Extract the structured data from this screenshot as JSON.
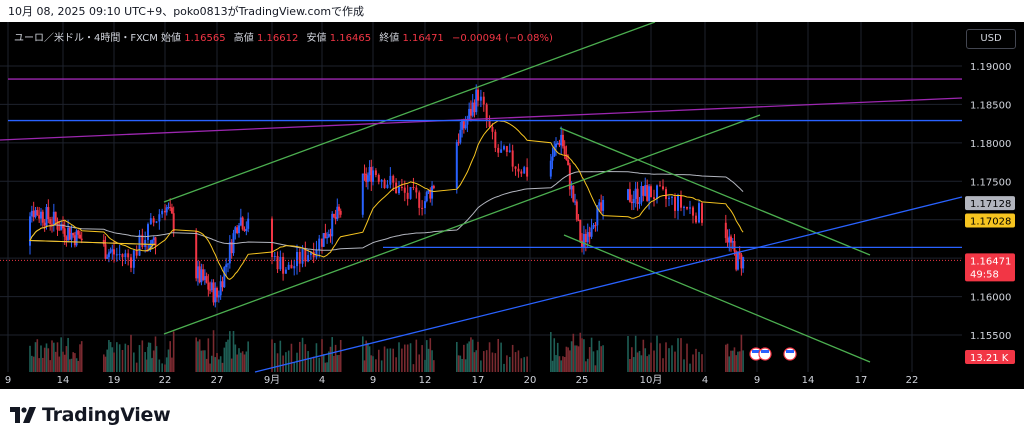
{
  "header": {
    "text": "10月 08, 2025 09:10 UTC+9、poko0813がTradingView.comで作成"
  },
  "legend": {
    "symbol": "ユーロ／米ドル・4時間・FXCM",
    "open_label": "始値",
    "open": "1.16565",
    "high_label": "高値",
    "high": "1.16612",
    "low_label": "安値",
    "low": "1.16465",
    "close_label": "終値",
    "close": "1.16471",
    "change": "−0.00094 (−0.08%)"
  },
  "currency_button": "USD",
  "footer": {
    "brand": "TradingView"
  },
  "colors": {
    "background": "#000000",
    "up": "#2962ff",
    "down": "#f23645",
    "grid": "#1e222d",
    "channel_green": "#4caf50",
    "level_blue": "#2962ff",
    "resistance_purple": "#9c27b0",
    "ma_fast": "#f7c520",
    "ma_slow": "#b2b5be"
  },
  "chart_data": {
    "type": "candlestick",
    "symbol": "EURUSD",
    "timeframe": "4h",
    "y_range": [
      1.1515,
      1.1945
    ],
    "y_ticks": [
      "1.19000",
      "1.18500",
      "1.18000",
      "1.17500",
      "1.17000",
      "1.16500",
      "1.16000",
      "1.15500"
    ],
    "x_ticks": [
      "9",
      "14",
      "19",
      "22",
      "27",
      "9月",
      "4",
      "9",
      "12",
      "17",
      "20",
      "25",
      "10月",
      "4",
      "9",
      "14",
      "17",
      "22"
    ],
    "price_labels": [
      {
        "text": "1.17128",
        "value": 1.17128,
        "color": "#b2b5be"
      },
      {
        "text": "1.17028",
        "value": 1.17028,
        "color": "#f7c520"
      },
      {
        "text": "1.16471",
        "value": 1.16471,
        "color": "#f23645",
        "countdown": "49:58"
      },
      {
        "text": "13.21 K",
        "value": null,
        "color": "#f23645"
      }
    ],
    "key_closes": [
      {
        "date": "Aug 8",
        "close": 1.166
      },
      {
        "date": "Aug 11",
        "close": 1.1715
      },
      {
        "date": "Aug 13",
        "close": 1.17
      },
      {
        "date": "Aug 15",
        "close": 1.168
      },
      {
        "date": "Aug 20",
        "close": 1.165
      },
      {
        "date": "Aug 22",
        "close": 1.172
      },
      {
        "date": "Aug 25",
        "close": 1.163
      },
      {
        "date": "Aug 27",
        "close": 1.16
      },
      {
        "date": "Aug 29",
        "close": 1.1705
      },
      {
        "date": "Sep 2",
        "close": 1.1635
      },
      {
        "date": "Sep 5",
        "close": 1.1695
      },
      {
        "date": "Sep 9",
        "close": 1.1765
      },
      {
        "date": "Sep 11",
        "close": 1.173
      },
      {
        "date": "Sep 12",
        "close": 1.1725
      },
      {
        "date": "Sep 16",
        "close": 1.183
      },
      {
        "date": "Sep 17",
        "close": 1.1865
      },
      {
        "date": "Sep 18",
        "close": 1.179
      },
      {
        "date": "Sep 21",
        "close": 1.1745
      },
      {
        "date": "Sep 23",
        "close": 1.181
      },
      {
        "date": "Sep 25",
        "close": 1.1665
      },
      {
        "date": "Sep 26",
        "close": 1.1705
      },
      {
        "date": "Sep 29",
        "close": 1.173
      },
      {
        "date": "Oct 1",
        "close": 1.1735
      },
      {
        "date": "Oct 3",
        "close": 1.1715
      },
      {
        "date": "Oct 6",
        "close": 1.1685
      },
      {
        "date": "Oct 7",
        "close": 1.1647
      }
    ],
    "drawings": [
      {
        "name": "resistance-1.1883",
        "value": 1.1883
      },
      {
        "name": "level-1.1829",
        "value": 1.1829
      },
      {
        "name": "support-1.1664",
        "value": 1.1664
      }
    ],
    "volume_last": "13.21 K",
    "grid": true
  }
}
